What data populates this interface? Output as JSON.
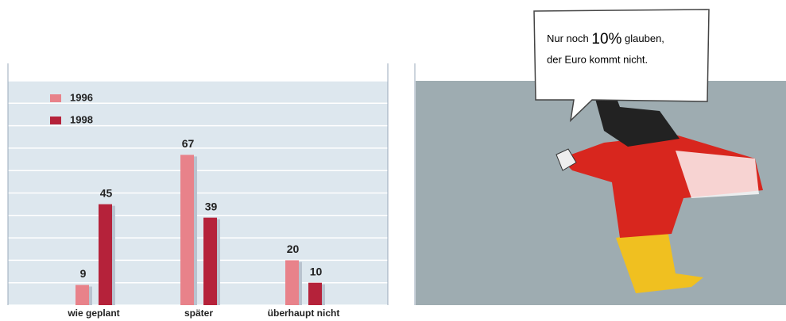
{
  "chart_data": {
    "type": "bar",
    "categories": [
      "wie geplant",
      "später",
      "überhaupt nicht"
    ],
    "series": [
      {
        "name": "1996",
        "color": "#e8828a",
        "values": [
          9,
          67,
          20
        ]
      },
      {
        "name": "1998",
        "color": "#b5223a",
        "values": [
          45,
          39,
          10
        ]
      }
    ],
    "ylim": [
      0,
      100
    ],
    "yticks": [
      0,
      10,
      20,
      30,
      40,
      50,
      60,
      70,
      80,
      90,
      100
    ],
    "grid": true
  },
  "callout": {
    "line1_before": "Nur noch",
    "line1_highlight": "10%",
    "line1_after": "glauben,",
    "line2": "der Euro kommt nicht."
  }
}
